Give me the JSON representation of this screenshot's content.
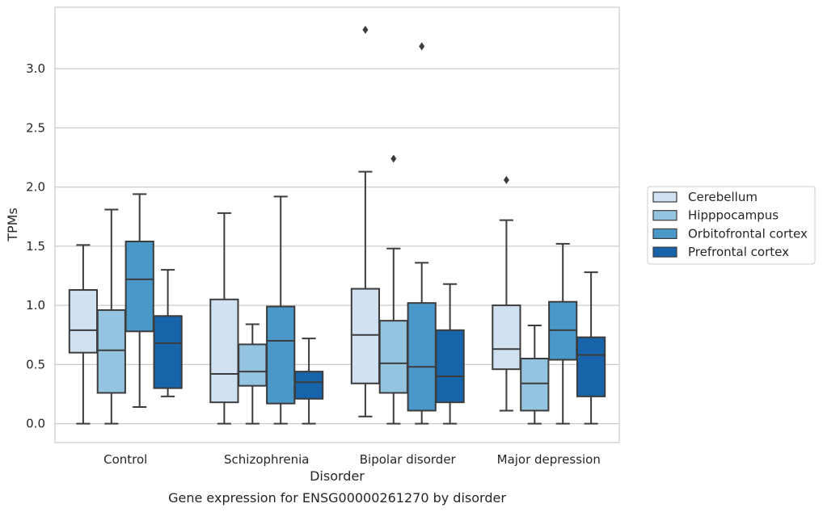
{
  "chart_data": {
    "type": "box",
    "caption": "Gene expression for ENSG00000261270 by disorder",
    "xlabel": "Disorder",
    "ylabel": "TPMs",
    "ylim": [
      -0.16,
      3.52
    ],
    "yticks": [
      0.0,
      0.5,
      1.0,
      1.5,
      2.0,
      2.5,
      3.0
    ],
    "ytick_labels": [
      "0.0",
      "0.5",
      "1.0",
      "1.5",
      "2.0",
      "2.5",
      "3.0"
    ],
    "grid": "horizontal",
    "legend_position": "right",
    "categories": [
      "Control",
      "Schizophrenia",
      "Bipolar disorder",
      "Major depression"
    ],
    "series": [
      {
        "name": "Cerebellum",
        "color": "#d0e1f2",
        "boxes": [
          {
            "whislo": 0.0,
            "q1": 0.6,
            "med": 0.79,
            "q3": 1.13,
            "whishi": 1.51,
            "fliers": []
          },
          {
            "whislo": 0.0,
            "q1": 0.18,
            "med": 0.42,
            "q3": 1.05,
            "whishi": 1.78,
            "fliers": []
          },
          {
            "whislo": 0.06,
            "q1": 0.34,
            "med": 0.75,
            "q3": 1.14,
            "whishi": 2.13,
            "fliers": [
              3.33
            ]
          },
          {
            "whislo": 0.11,
            "q1": 0.46,
            "med": 0.63,
            "q3": 1.0,
            "whishi": 1.72,
            "fliers": [
              2.06
            ]
          }
        ]
      },
      {
        "name": "Hipppocampus",
        "color": "#94c4df",
        "boxes": [
          {
            "whislo": 0.0,
            "q1": 0.26,
            "med": 0.62,
            "q3": 0.96,
            "whishi": 1.81,
            "fliers": []
          },
          {
            "whislo": 0.0,
            "q1": 0.32,
            "med": 0.44,
            "q3": 0.67,
            "whishi": 0.84,
            "fliers": []
          },
          {
            "whislo": 0.0,
            "q1": 0.26,
            "med": 0.51,
            "q3": 0.87,
            "whishi": 1.48,
            "fliers": [
              2.24
            ]
          },
          {
            "whislo": 0.0,
            "q1": 0.11,
            "med": 0.34,
            "q3": 0.55,
            "whishi": 0.83,
            "fliers": []
          }
        ]
      },
      {
        "name": "Orbitofrontal cortex",
        "color": "#4a98c9",
        "boxes": [
          {
            "whislo": 0.14,
            "q1": 0.78,
            "med": 1.22,
            "q3": 1.54,
            "whishi": 1.94,
            "fliers": []
          },
          {
            "whislo": 0.0,
            "q1": 0.17,
            "med": 0.7,
            "q3": 0.99,
            "whishi": 1.92,
            "fliers": []
          },
          {
            "whislo": 0.0,
            "q1": 0.11,
            "med": 0.48,
            "q3": 1.02,
            "whishi": 1.36,
            "fliers": [
              3.19
            ]
          },
          {
            "whislo": 0.0,
            "q1": 0.54,
            "med": 0.79,
            "q3": 1.03,
            "whishi": 1.52,
            "fliers": []
          }
        ]
      },
      {
        "name": "Prefrontal cortex",
        "color": "#1764ab",
        "boxes": [
          {
            "whislo": 0.23,
            "q1": 0.3,
            "med": 0.68,
            "q3": 0.91,
            "whishi": 1.3,
            "fliers": []
          },
          {
            "whislo": 0.0,
            "q1": 0.21,
            "med": 0.35,
            "q3": 0.44,
            "whishi": 0.72,
            "fliers": []
          },
          {
            "whislo": 0.0,
            "q1": 0.18,
            "med": 0.4,
            "q3": 0.79,
            "whishi": 1.18,
            "fliers": []
          },
          {
            "whislo": 0.0,
            "q1": 0.23,
            "med": 0.58,
            "q3": 0.73,
            "whishi": 1.28,
            "fliers": []
          }
        ]
      }
    ]
  }
}
